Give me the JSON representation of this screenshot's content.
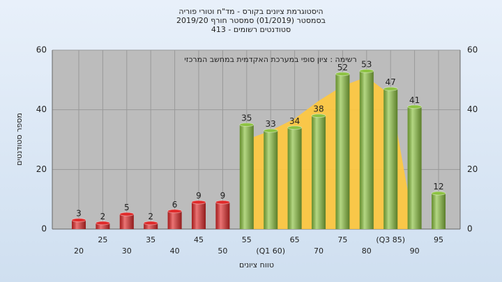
{
  "chart_data": {
    "type": "bar",
    "title": "היסטוגרמת ציונים בקורס - מד\"ח וטורי פוריה",
    "subtitle": "בסמסטר  (01/2019)  סמסטר חורף 2019/20",
    "subtitle2": "413 - סטודנטים רשומים",
    "annotation": "רשימה : ציון סופי במערכת האקדמית במחשב המרכזי",
    "ylabel": "מספר סטודנטים",
    "xlabel": "טווח ציונים",
    "categories": [
      "20",
      "25",
      "30",
      "35",
      "40",
      "45",
      "50",
      "55",
      "(Q1 60)",
      "65",
      "70",
      "75",
      "80",
      "(Q3 85)",
      "90",
      "95"
    ],
    "values": [
      3,
      2,
      5,
      2,
      6,
      9,
      9,
      35,
      33,
      34,
      38,
      52,
      53,
      47,
      41,
      12
    ],
    "colors": [
      "#e02a2a",
      "#e02a2a",
      "#e02a2a",
      "#e02a2a",
      "#e02a2a",
      "#e02a2a",
      "#e02a2a",
      "#8cc241",
      "#8cc241",
      "#8cc241",
      "#8cc241",
      "#8cc241",
      "#8cc241",
      "#8cc241",
      "#8cc241",
      "#8cc241"
    ],
    "curve": {
      "color": "#ffc83c",
      "values": [
        null,
        null,
        null,
        null,
        null,
        null,
        null,
        30,
        33,
        37,
        43,
        48,
        51,
        45,
        0,
        null
      ]
    },
    "ylim": [
      0,
      60
    ],
    "yticks": [
      0,
      20,
      40,
      60
    ],
    "grid": true
  }
}
